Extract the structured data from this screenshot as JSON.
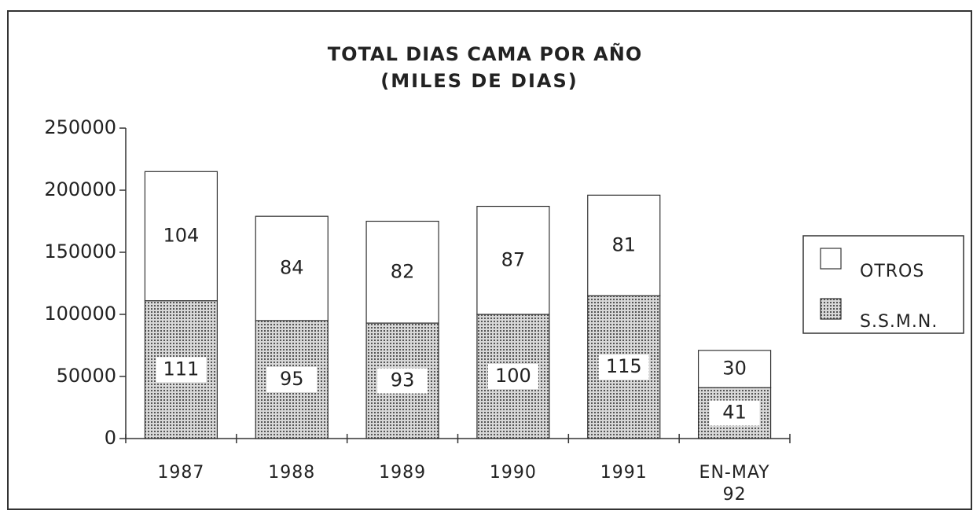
{
  "chart_data": {
    "type": "bar",
    "stacked": true,
    "title": "TOTAL DIAS CAMA POR AÑO",
    "subtitle": "(MILES DE DIAS)",
    "categories": [
      "1987",
      "1988",
      "1989",
      "1990",
      "1991",
      "EN-MAY 92"
    ],
    "series": [
      {
        "name": "S.S.M.N.",
        "color": "#8a8a8a",
        "values": [
          111000,
          95000,
          93000,
          100000,
          115000,
          41000
        ],
        "value_labels": [
          "111",
          "95",
          "93",
          "100",
          "115",
          "41"
        ]
      },
      {
        "name": "OTROS",
        "color": "#ffffff",
        "values": [
          104000,
          84000,
          82000,
          87000,
          81000,
          30000
        ],
        "value_labels": [
          "104",
          "84",
          "82",
          "87",
          "81",
          "30"
        ]
      }
    ],
    "ylim": [
      0,
      250000
    ],
    "yticks": [
      0,
      50000,
      100000,
      150000,
      200000,
      250000
    ],
    "legend": "right"
  }
}
